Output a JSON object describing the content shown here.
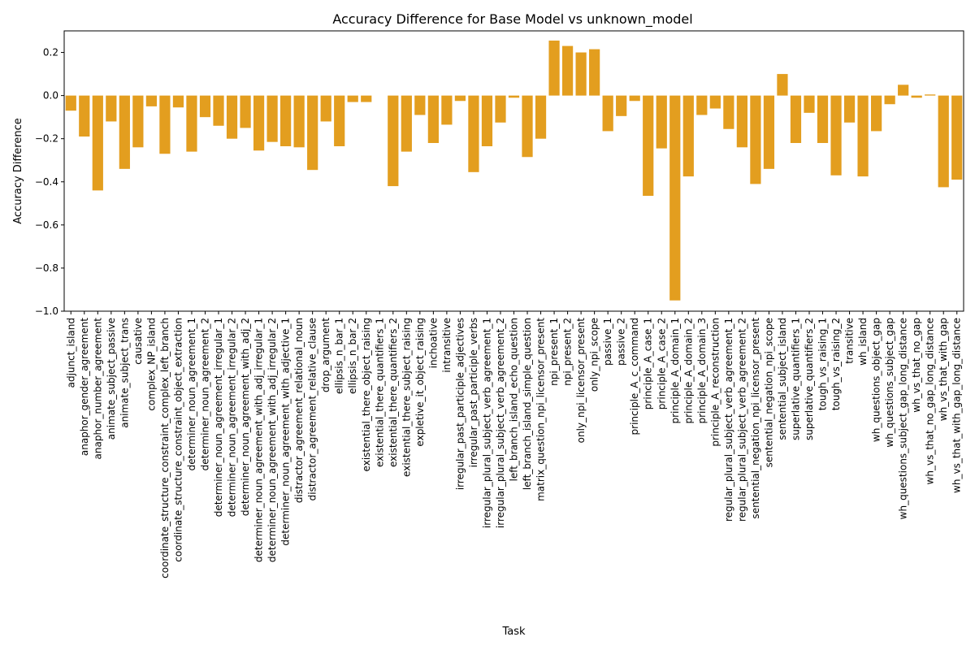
{
  "chart_data": {
    "type": "bar",
    "title": "Accuracy Difference for Base Model vs unknown_model",
    "xlabel": "Task",
    "ylabel": "Accuracy Difference",
    "ylim": [
      -1.0,
      0.3
    ],
    "yticks": [
      "−1.0",
      "−0.8",
      "−0.6",
      "−0.4",
      "−0.2",
      "0.0",
      "0.2"
    ],
    "ytick_values": [
      -1.0,
      -0.8,
      -0.6,
      -0.4,
      -0.2,
      0.0,
      0.2
    ],
    "grid": false,
    "bar_color": "#e39e1f",
    "categories": [
      "adjunct_island",
      "anaphor_gender_agreement",
      "anaphor_number_agreement",
      "animate_subject_passive",
      "animate_subject_trans",
      "causative",
      "complex_NP_island",
      "coordinate_structure_constraint_complex_left_branch",
      "coordinate_structure_constraint_object_extraction",
      "determiner_noun_agreement_1",
      "determiner_noun_agreement_2",
      "determiner_noun_agreement_irregular_1",
      "determiner_noun_agreement_irregular_2",
      "determiner_noun_agreement_with_adj_2",
      "determiner_noun_agreement_with_adj_irregular_1",
      "determiner_noun_agreement_with_adj_irregular_2",
      "determiner_noun_agreement_with_adjective_1",
      "distractor_agreement_relational_noun",
      "distractor_agreement_relative_clause",
      "drop_argument",
      "ellipsis_n_bar_1",
      "ellipsis_n_bar_2",
      "existential_there_object_raising",
      "existential_there_quantifiers_1",
      "existential_there_quantifiers_2",
      "existential_there_subject_raising",
      "expletive_it_object_raising",
      "inchoative",
      "intransitive",
      "irregular_past_participle_adjectives",
      "irregular_past_participle_verbs",
      "irregular_plural_subject_verb_agreement_1",
      "irregular_plural_subject_verb_agreement_2",
      "left_branch_island_echo_question",
      "left_branch_island_simple_question",
      "matrix_question_npi_licensor_present",
      "npi_present_1",
      "npi_present_2",
      "only_npi_licensor_present",
      "only_npi_scope",
      "passive_1",
      "passive_2",
      "principle_A_c_command",
      "principle_A_case_1",
      "principle_A_case_2",
      "principle_A_domain_1",
      "principle_A_domain_2",
      "principle_A_domain_3",
      "principle_A_reconstruction",
      "regular_plural_subject_verb_agreement_1",
      "regular_plural_subject_verb_agreement_2",
      "sentential_negation_npi_licensor_present",
      "sentential_negation_npi_scope",
      "sentential_subject_island",
      "superlative_quantifiers_1",
      "superlative_quantifiers_2",
      "tough_vs_raising_1",
      "tough_vs_raising_2",
      "transitive",
      "wh_island",
      "wh_questions_object_gap",
      "wh_questions_subject_gap",
      "wh_questions_subject_gap_long_distance",
      "wh_vs_that_no_gap",
      "wh_vs_that_no_gap_long_distance",
      "wh_vs_that_with_gap",
      "wh_vs_that_with_gap_long_distance"
    ],
    "values": [
      -0.07,
      -0.19,
      -0.44,
      -0.12,
      -0.34,
      -0.24,
      -0.05,
      -0.27,
      -0.055,
      -0.26,
      -0.1,
      -0.14,
      -0.2,
      -0.15,
      -0.255,
      -0.215,
      -0.235,
      -0.24,
      -0.345,
      -0.12,
      -0.235,
      -0.03,
      -0.03,
      0.0,
      -0.42,
      -0.26,
      -0.09,
      -0.22,
      -0.135,
      -0.025,
      -0.355,
      -0.235,
      -0.125,
      -0.01,
      -0.285,
      -0.2,
      0.255,
      0.23,
      0.2,
      0.215,
      -0.165,
      -0.095,
      -0.025,
      -0.465,
      -0.245,
      -0.95,
      -0.375,
      -0.09,
      -0.06,
      -0.155,
      -0.24,
      -0.41,
      -0.34,
      0.1,
      -0.22,
      -0.08,
      -0.22,
      -0.37,
      -0.125,
      -0.375,
      -0.165,
      -0.04,
      0.05,
      -0.01,
      0.005,
      -0.425,
      -0.39
    ]
  }
}
